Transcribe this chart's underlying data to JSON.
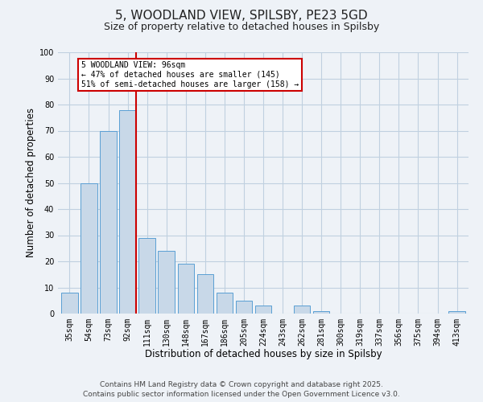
{
  "title": "5, WOODLAND VIEW, SPILSBY, PE23 5GD",
  "subtitle": "Size of property relative to detached houses in Spilsby",
  "xlabel": "Distribution of detached houses by size in Spilsby",
  "ylabel": "Number of detached properties",
  "categories": [
    "35sqm",
    "54sqm",
    "73sqm",
    "92sqm",
    "111sqm",
    "130sqm",
    "148sqm",
    "167sqm",
    "186sqm",
    "205sqm",
    "224sqm",
    "243sqm",
    "262sqm",
    "281sqm",
    "300sqm",
    "319sqm",
    "337sqm",
    "356sqm",
    "375sqm",
    "394sqm",
    "413sqm"
  ],
  "values": [
    8,
    50,
    70,
    78,
    29,
    24,
    19,
    15,
    8,
    5,
    3,
    0,
    3,
    1,
    0,
    0,
    0,
    0,
    0,
    0,
    1
  ],
  "bar_color": "#c8d8e8",
  "bar_edge_color": "#5a9fd4",
  "highlight_index": 3,
  "highlight_line_color": "#cc0000",
  "highlight_box_line1": "5 WOODLAND VIEW: 96sqm",
  "highlight_box_line2": "← 47% of detached houses are smaller (145)",
  "highlight_box_line3": "51% of semi-detached houses are larger (158) →",
  "highlight_box_color": "#cc0000",
  "ylim": [
    0,
    100
  ],
  "yticks": [
    0,
    10,
    20,
    30,
    40,
    50,
    60,
    70,
    80,
    90,
    100
  ],
  "grid_color": "#c0d0e0",
  "background_color": "#eef2f7",
  "footer_line1": "Contains HM Land Registry data © Crown copyright and database right 2025.",
  "footer_line2": "Contains public sector information licensed under the Open Government Licence v3.0.",
  "title_fontsize": 11,
  "subtitle_fontsize": 9,
  "axis_label_fontsize": 8.5,
  "tick_fontsize": 7,
  "footer_fontsize": 6.5
}
